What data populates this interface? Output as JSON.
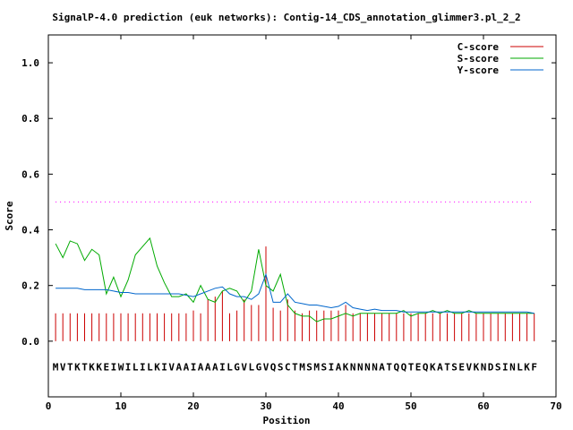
{
  "chart_data": {
    "type": "line",
    "title": "SignalP-4.0 prediction (euk networks): Contig-14_CDS_annotation_glimmer3.pl_2_2",
    "xlabel": "Position",
    "ylabel": "Score",
    "xlim": [
      0,
      70
    ],
    "ylim": [
      -0.2,
      1.1
    ],
    "x_ticks": [
      0,
      10,
      20,
      30,
      40,
      50,
      60,
      70
    ],
    "y_ticks": [
      0.0,
      0.2,
      0.4,
      0.6,
      0.8,
      1.0
    ],
    "x_tick_labels": [
      "0",
      "10",
      "20",
      "30",
      "40",
      "50",
      "60",
      "70"
    ],
    "y_tick_labels": [
      "0.0",
      "0.2",
      "0.4",
      "0.6",
      "0.8",
      "1.0"
    ],
    "threshold": 0.5,
    "threshold_color": "#ff00ff",
    "legend_position": "top-right",
    "sequence": "MVTKTKKEIWILILKIVAAIAAAILGVLGVQSCTMSMSIAKNNNNATQQTEQKATSEVKNDSINLKF",
    "x": [
      1,
      2,
      3,
      4,
      5,
      6,
      7,
      8,
      9,
      10,
      11,
      12,
      13,
      14,
      15,
      16,
      17,
      18,
      19,
      20,
      21,
      22,
      23,
      24,
      25,
      26,
      27,
      28,
      29,
      30,
      31,
      32,
      33,
      34,
      35,
      36,
      37,
      38,
      39,
      40,
      41,
      42,
      43,
      44,
      45,
      46,
      47,
      48,
      49,
      50,
      51,
      52,
      53,
      54,
      55,
      56,
      57,
      58,
      59,
      60,
      61,
      62,
      63,
      64,
      65,
      66,
      67
    ],
    "series": [
      {
        "name": "C-score",
        "style": "impulse",
        "color": "#cc0000",
        "values": [
          0.1,
          0.1,
          0.1,
          0.1,
          0.1,
          0.1,
          0.1,
          0.1,
          0.1,
          0.1,
          0.1,
          0.1,
          0.1,
          0.1,
          0.1,
          0.1,
          0.1,
          0.1,
          0.1,
          0.11,
          0.1,
          0.15,
          0.16,
          0.18,
          0.1,
          0.11,
          0.15,
          0.13,
          0.13,
          0.34,
          0.12,
          0.11,
          0.15,
          0.11,
          0.1,
          0.11,
          0.11,
          0.11,
          0.11,
          0.11,
          0.13,
          0.1,
          0.1,
          0.1,
          0.1,
          0.1,
          0.1,
          0.1,
          0.1,
          0.1,
          0.1,
          0.1,
          0.1,
          0.1,
          0.1,
          0.1,
          0.1,
          0.1,
          0.1,
          0.1,
          0.1,
          0.1,
          0.1,
          0.1,
          0.1,
          0.1,
          0.1
        ]
      },
      {
        "name": "S-score",
        "style": "line",
        "color": "#00aa00",
        "values": [
          0.35,
          0.3,
          0.36,
          0.35,
          0.29,
          0.33,
          0.31,
          0.17,
          0.23,
          0.16,
          0.22,
          0.31,
          0.34,
          0.37,
          0.27,
          0.21,
          0.16,
          0.16,
          0.17,
          0.14,
          0.2,
          0.15,
          0.14,
          0.18,
          0.19,
          0.18,
          0.14,
          0.18,
          0.33,
          0.2,
          0.18,
          0.24,
          0.13,
          0.1,
          0.09,
          0.09,
          0.07,
          0.08,
          0.08,
          0.09,
          0.1,
          0.09,
          0.1,
          0.1,
          0.1,
          0.1,
          0.1,
          0.1,
          0.11,
          0.09,
          0.1,
          0.1,
          0.11,
          0.1,
          0.11,
          0.1,
          0.1,
          0.11,
          0.1,
          0.1,
          0.1,
          0.1,
          0.1,
          0.1,
          0.1,
          0.1,
          0.1
        ]
      },
      {
        "name": "Y-score",
        "style": "line",
        "color": "#0066cc",
        "values": [
          0.19,
          0.19,
          0.19,
          0.19,
          0.185,
          0.185,
          0.185,
          0.185,
          0.18,
          0.175,
          0.175,
          0.17,
          0.17,
          0.17,
          0.17,
          0.17,
          0.17,
          0.17,
          0.165,
          0.16,
          0.17,
          0.18,
          0.19,
          0.195,
          0.17,
          0.16,
          0.16,
          0.15,
          0.17,
          0.24,
          0.14,
          0.14,
          0.17,
          0.14,
          0.135,
          0.13,
          0.13,
          0.125,
          0.12,
          0.125,
          0.14,
          0.12,
          0.115,
          0.11,
          0.115,
          0.11,
          0.11,
          0.11,
          0.105,
          0.105,
          0.105,
          0.105,
          0.105,
          0.105,
          0.105,
          0.105,
          0.105,
          0.105,
          0.105,
          0.105,
          0.105,
          0.105,
          0.105,
          0.105,
          0.105,
          0.105,
          0.1
        ]
      }
    ]
  }
}
